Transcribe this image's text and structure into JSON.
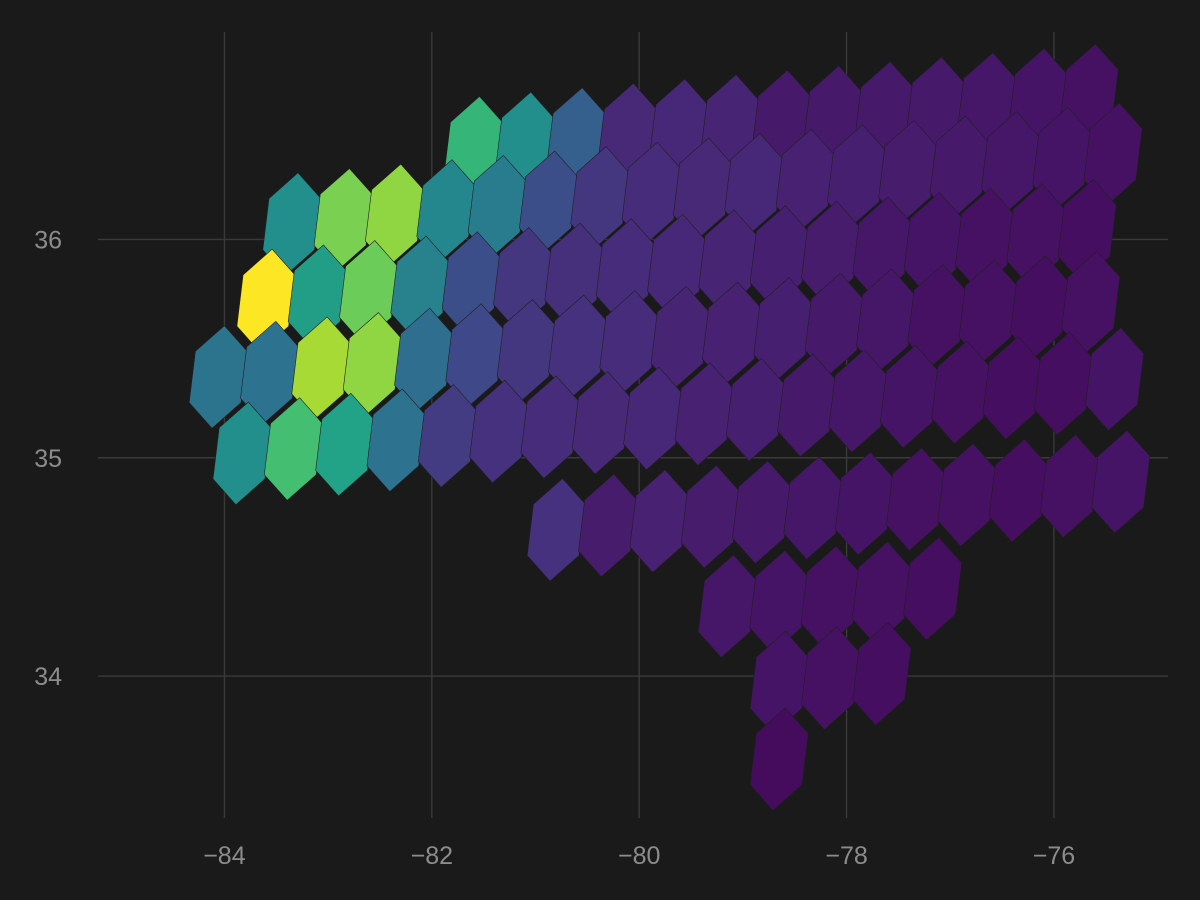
{
  "chart_data": {
    "type": "heatmap",
    "subtype": "hexbin-map",
    "title": "",
    "xlabel": "",
    "ylabel": "",
    "xlim": [
      -85.2,
      -74.9
    ],
    "ylim": [
      33.35,
      36.95
    ],
    "x_ticks": [
      -84,
      -82,
      -80,
      -78,
      -76
    ],
    "x_tick_labels": [
      "−84",
      "−82",
      "−80",
      "−78",
      "−76"
    ],
    "y_ticks": [
      34,
      35,
      36
    ],
    "y_tick_labels": [
      "34",
      "35",
      "36"
    ],
    "grid": true,
    "legend": "none",
    "colormap": "viridis",
    "background": "#1a1a1a",
    "value_range": [
      0,
      1
    ],
    "hex_rows": [
      {
        "y": 36.42,
        "x0": -81.6,
        "values": [
          0.78,
          0.62,
          0.38,
          0.15,
          0.14,
          0.13,
          0.09,
          0.09,
          0.09,
          0.09,
          0.08,
          0.07,
          0.06
        ]
      },
      {
        "y": 36.07,
        "x0": -83.35,
        "values": [
          0.62,
          0.88,
          0.9,
          0.58,
          0.52,
          0.3,
          0.2,
          0.16,
          0.15,
          0.14,
          0.12,
          0.11,
          0.1,
          0.09,
          0.08,
          0.07,
          0.06
        ]
      },
      {
        "y": 35.72,
        "x0": -83.6,
        "values": [
          1.0,
          0.7,
          0.86,
          0.55,
          0.3,
          0.2,
          0.17,
          0.16,
          0.14,
          0.13,
          0.11,
          0.1,
          0.08,
          0.07,
          0.06,
          0.06,
          0.05
        ]
      },
      {
        "y": 35.37,
        "x0": -84.06,
        "values": [
          0.48,
          0.47,
          0.92,
          0.9,
          0.45,
          0.27,
          0.2,
          0.18,
          0.16,
          0.13,
          0.12,
          0.11,
          0.09,
          0.08,
          0.06,
          0.06,
          0.05,
          0.06
        ]
      },
      {
        "y": 35.02,
        "x0": -83.83,
        "values": [
          0.62,
          0.8,
          0.72,
          0.47,
          0.22,
          0.18,
          0.16,
          0.15,
          0.14,
          0.12,
          0.11,
          0.09,
          0.08,
          0.07,
          0.06,
          0.05,
          0.05,
          0.07
        ]
      },
      {
        "y": 34.67,
        "x0": -80.8,
        "values": [
          0.18,
          0.1,
          0.12,
          0.1,
          0.09,
          0.08,
          0.07,
          0.06,
          0.06,
          0.05,
          0.06,
          0.07
        ]
      },
      {
        "y": 34.32,
        "x0": -79.15,
        "values": [
          0.08,
          0.07,
          0.06,
          0.06,
          0.05
        ]
      },
      {
        "y": 33.97,
        "x0": -78.65,
        "values": [
          0.07,
          0.06,
          0.05
        ]
      },
      {
        "y": 33.62,
        "x0": -78.65,
        "values": [
          0.04
        ]
      }
    ]
  }
}
